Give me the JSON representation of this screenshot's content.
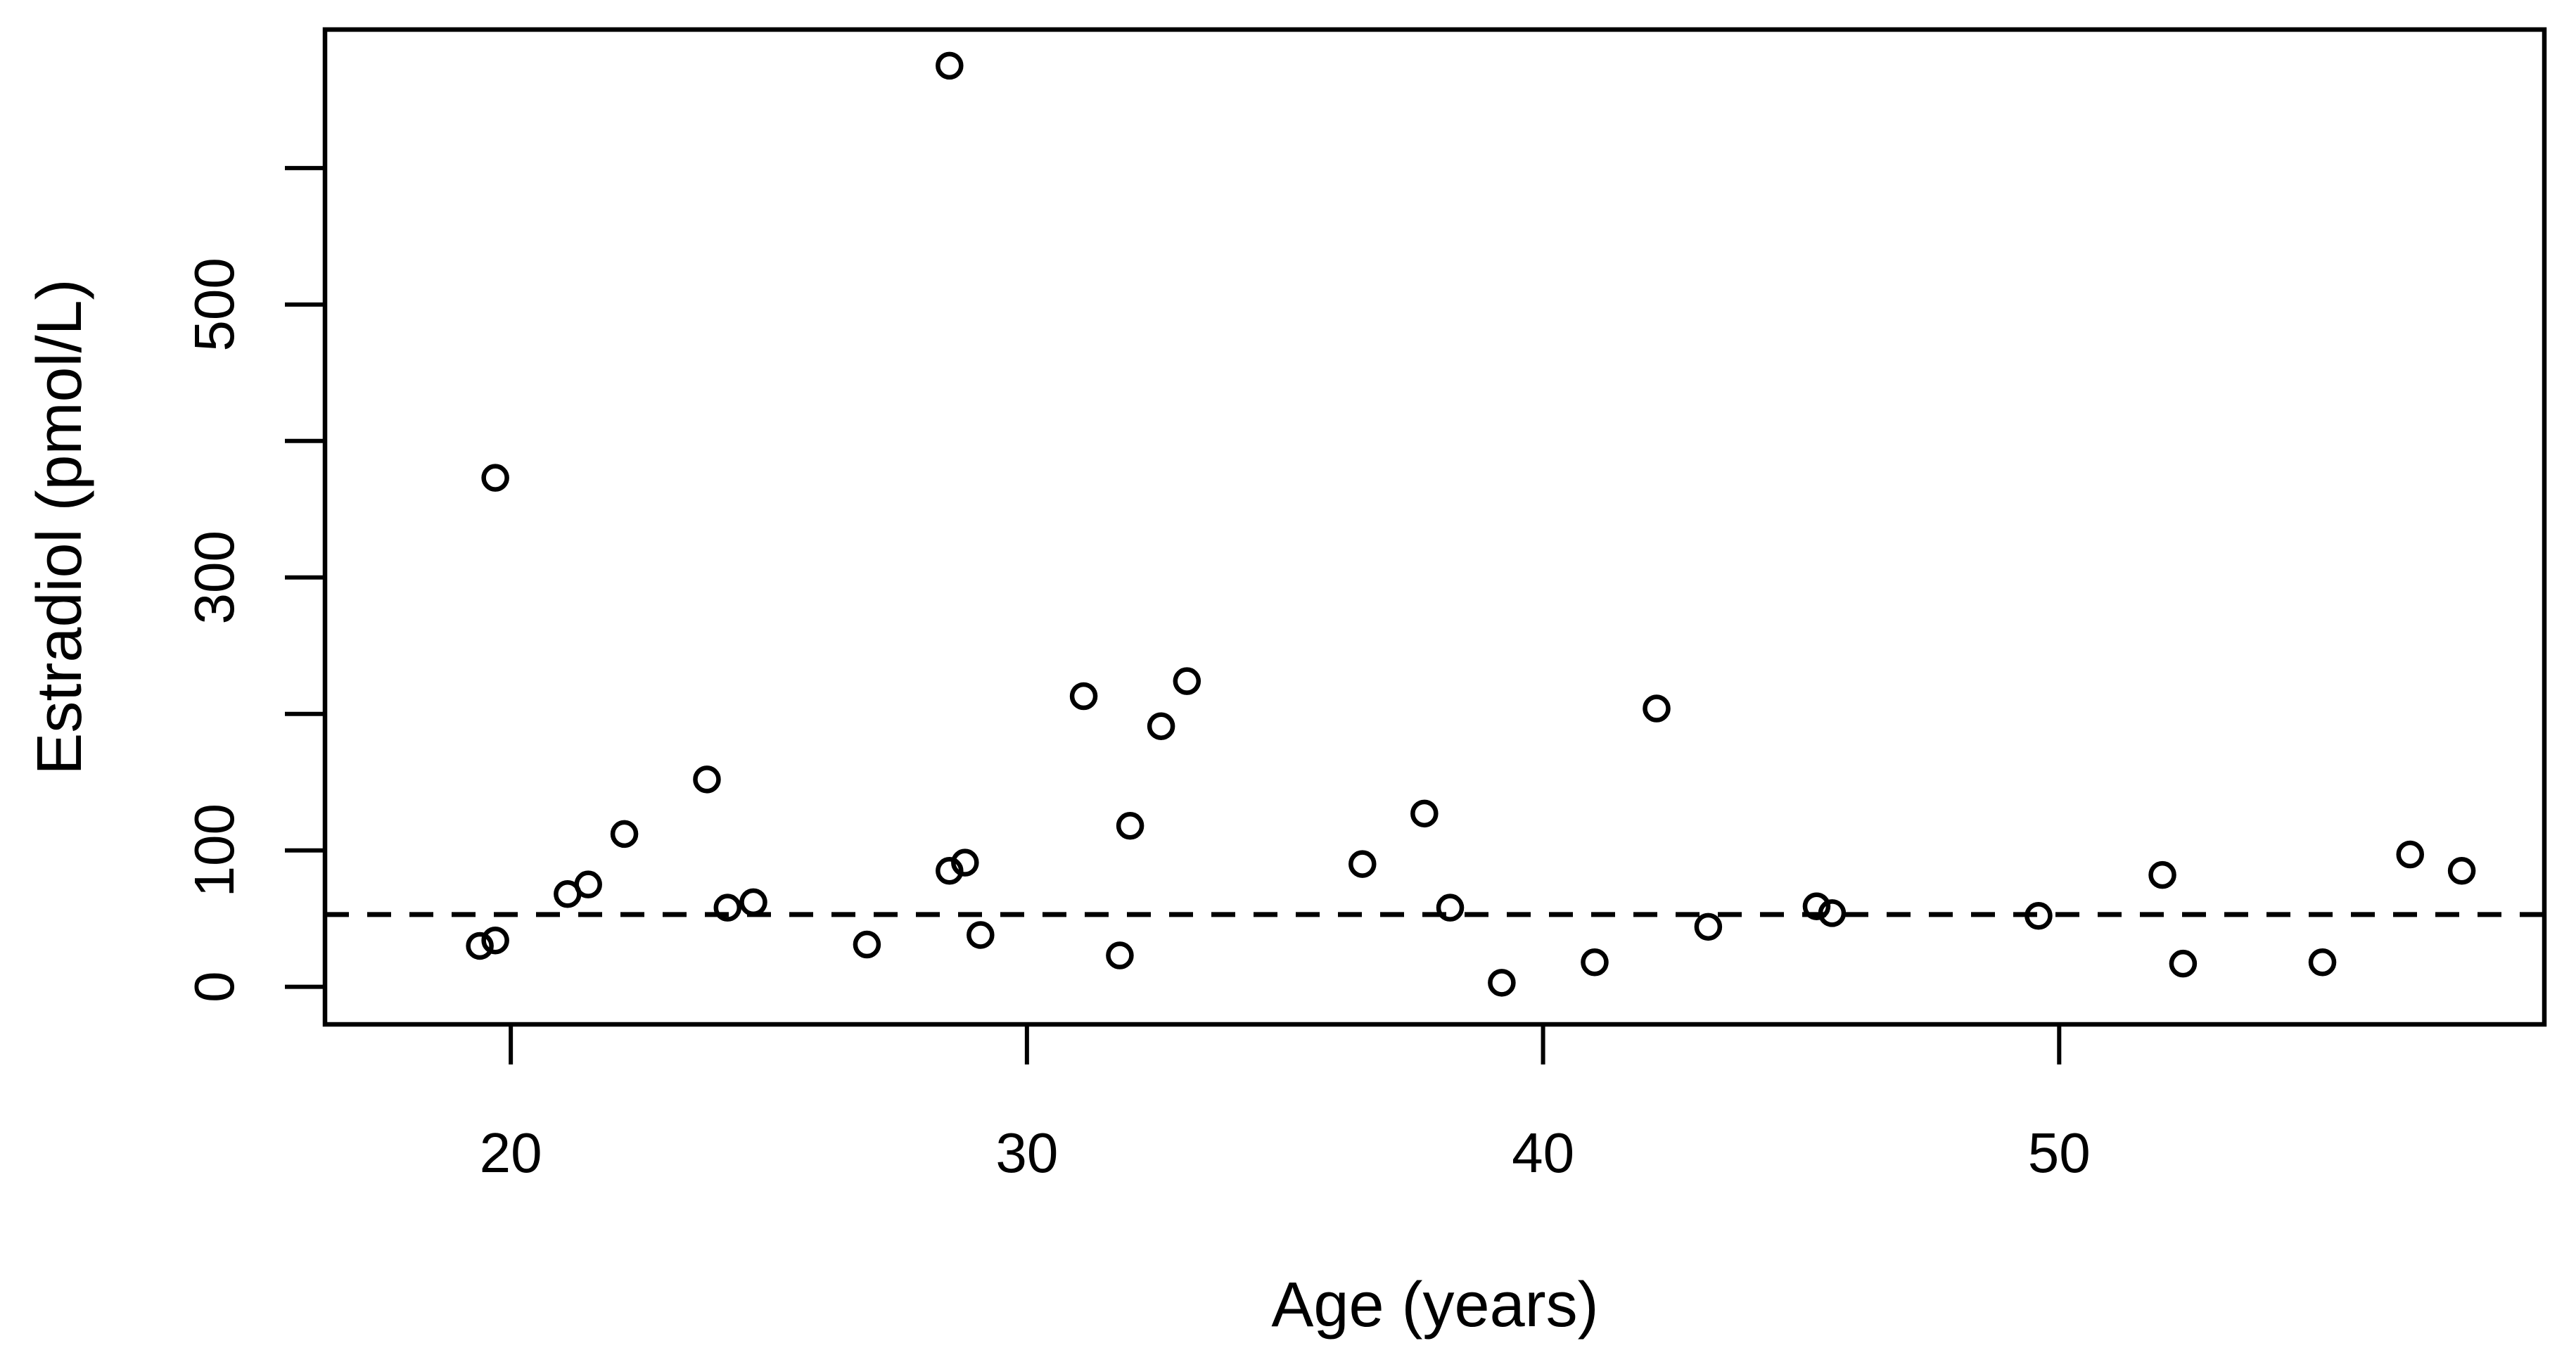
{
  "figure": {
    "background_color": "#ffffff",
    "ink_color": "#000000"
  },
  "chart_data": {
    "type": "scatter",
    "title": "",
    "xlabel": "Age (years)",
    "ylabel": "Estradiol (pmol/L)",
    "xlim": [
      16.4,
      59.4
    ],
    "ylim": [
      -27.5,
      701.5
    ],
    "x_ticks": [
      20,
      30,
      40,
      50
    ],
    "y_ticks": [
      0,
      100,
      200,
      300,
      400,
      500,
      600
    ],
    "y_tick_labels_shown": [
      0,
      100,
      300,
      500
    ],
    "grid": false,
    "legend": "none",
    "marker": "open-circle",
    "reference_line": {
      "style": "dashed",
      "y": 53
    },
    "points": [
      [
        19.4,
        30
      ],
      [
        19.7,
        34
      ],
      [
        19.7,
        373
      ],
      [
        21.1,
        68
      ],
      [
        21.5,
        75
      ],
      [
        22.2,
        112
      ],
      [
        23.8,
        152
      ],
      [
        24.2,
        58
      ],
      [
        24.7,
        62
      ],
      [
        26.9,
        31
      ],
      [
        28.5,
        85
      ],
      [
        28.5,
        675
      ],
      [
        28.8,
        91
      ],
      [
        29.1,
        38
      ],
      [
        31.1,
        213
      ],
      [
        31.8,
        23
      ],
      [
        32.0,
        118
      ],
      [
        32.6,
        191
      ],
      [
        33.1,
        224
      ],
      [
        36.5,
        90
      ],
      [
        37.7,
        127
      ],
      [
        38.2,
        58
      ],
      [
        39.2,
        3
      ],
      [
        41.0,
        18
      ],
      [
        42.2,
        204
      ],
      [
        43.2,
        44
      ],
      [
        45.3,
        59
      ],
      [
        45.6,
        54
      ],
      [
        49.6,
        52
      ],
      [
        52.0,
        82
      ],
      [
        52.4,
        17
      ],
      [
        55.1,
        18
      ],
      [
        56.8,
        97
      ],
      [
        57.8,
        85
      ]
    ]
  }
}
